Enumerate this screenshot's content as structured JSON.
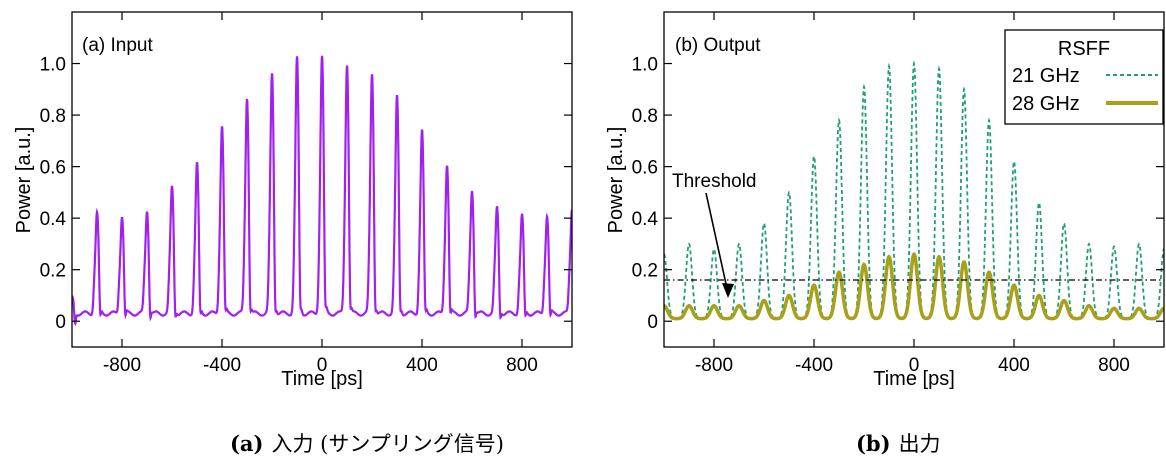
{
  "captions": {
    "a": {
      "tag": "(a)",
      "text": "入力 (サンプリング信号)"
    },
    "b": {
      "tag": "(b)",
      "text": "出力"
    }
  },
  "colors": {
    "input": "#a020f0",
    "rsff21": "#1f9e7a",
    "rsff28": "#a8a01a",
    "threshold": "#000000"
  },
  "chart_data": [
    {
      "type": "line",
      "panel_label": "(a) Input",
      "xlabel": "Time [ps]",
      "ylabel": "Power [a.u.]",
      "xlim": [
        -1000,
        1000
      ],
      "ylim": [
        -0.1,
        1.2
      ],
      "xticks": [
        -800,
        -400,
        0,
        400,
        800
      ],
      "yticks": [
        0,
        0.2,
        0.4,
        0.6,
        0.8,
        1.0
      ],
      "ytick_labels": [
        "0",
        "0.2",
        "0.4",
        "0.6",
        "0.8",
        "1.0"
      ],
      "xtick_labels": [
        "-800",
        "-400",
        "0",
        "400",
        "800"
      ],
      "grid": false,
      "series": [
        {
          "pulse_times": [
            -1000,
            -900,
            -800,
            -700,
            -600,
            -500,
            -400,
            -300,
            -200,
            -100,
            0,
            100,
            200,
            300,
            400,
            500,
            600,
            700,
            800,
            900,
            1000
          ],
          "peak_values": [
            0.06,
            0.39,
            0.38,
            0.4,
            0.49,
            0.58,
            0.73,
            0.84,
            0.93,
            0.99,
            1.0,
            0.97,
            0.93,
            0.84,
            0.71,
            0.58,
            0.48,
            0.41,
            0.38,
            0.38,
            0.41
          ],
          "baseline": 0.03
        }
      ]
    },
    {
      "type": "line",
      "panel_label": "(b) Output",
      "xlabel": "Time [ps]",
      "ylabel": "Power [a.u.]",
      "xlim": [
        -1000,
        1000
      ],
      "ylim": [
        -0.1,
        1.2
      ],
      "xticks": [
        -800,
        -400,
        0,
        400,
        800
      ],
      "yticks": [
        0,
        0.2,
        0.4,
        0.6,
        0.8,
        1.0
      ],
      "ytick_labels": [
        "0",
        "0.2",
        "0.4",
        "0.6",
        "0.8",
        "1.0"
      ],
      "xtick_labels": [
        "-800",
        "-400",
        "0",
        "400",
        "800"
      ],
      "grid": false,
      "legend": {
        "title": "RSFF",
        "position": "top-right"
      },
      "threshold": {
        "label": "Threshold",
        "value": 0.16
      },
      "series": [
        {
          "name": "21 GHz",
          "style": "dashed",
          "pulse_times": [
            -1000,
            -900,
            -800,
            -700,
            -600,
            -500,
            -400,
            -300,
            -200,
            -100,
            0,
            100,
            200,
            300,
            400,
            500,
            600,
            700,
            800,
            900,
            1000
          ],
          "peak_values": [
            0.26,
            0.3,
            0.28,
            0.3,
            0.38,
            0.5,
            0.64,
            0.78,
            0.91,
            0.99,
            1.0,
            0.98,
            0.9,
            0.78,
            0.62,
            0.46,
            0.38,
            0.3,
            0.29,
            0.3,
            0.28
          ],
          "baseline": 0.01
        },
        {
          "name": "28 GHz",
          "style": "solid",
          "pulse_times": [
            -1000,
            -900,
            -800,
            -700,
            -600,
            -500,
            -400,
            -300,
            -200,
            -100,
            0,
            100,
            200,
            300,
            400,
            500,
            600,
            700,
            800,
            900,
            1000
          ],
          "peak_values": [
            0.06,
            0.06,
            0.06,
            0.06,
            0.08,
            0.1,
            0.14,
            0.19,
            0.22,
            0.25,
            0.26,
            0.25,
            0.23,
            0.19,
            0.14,
            0.1,
            0.08,
            0.06,
            0.05,
            0.05,
            0.05
          ],
          "baseline": 0.01
        }
      ]
    }
  ]
}
